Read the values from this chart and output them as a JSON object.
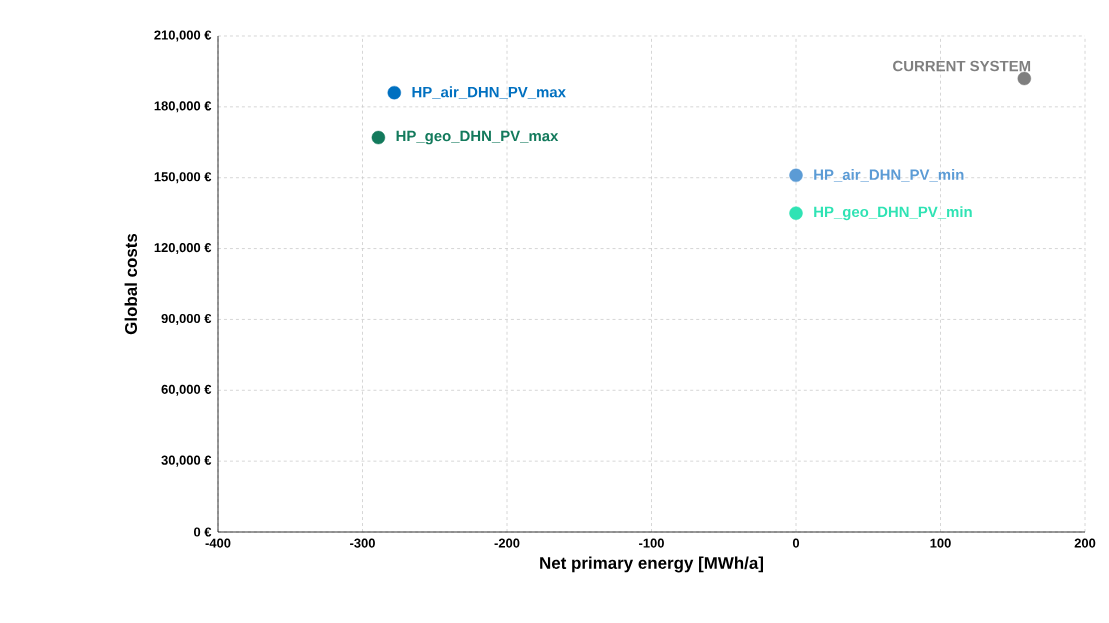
{
  "chart_data": {
    "type": "scatter",
    "xlabel": "Net primary energy [MWh/a]",
    "ylabel": "Global costs",
    "series": [
      {
        "name": "HP_air_DHN_PV_max",
        "color": "#0070c0",
        "x": [
          -278
        ],
        "values": [
          186000
        ]
      },
      {
        "name": "HP_geo_DHN_PV_max",
        "color": "#137a5c",
        "x": [
          -289
        ],
        "values": [
          167000
        ]
      },
      {
        "name": "HP_air_DHN_PV_min",
        "color": "#5b9bd5",
        "x": [
          0
        ],
        "values": [
          151000
        ]
      },
      {
        "name": "HP_geo_DHN_PV_min",
        "color": "#2fe3b4",
        "x": [
          0
        ],
        "values": [
          135000
        ]
      },
      {
        "name": "CURRENT SYSTEM",
        "color": "#7f7f7f",
        "x": [
          158
        ],
        "values": [
          192000
        ]
      }
    ],
    "xlim": [
      -400,
      200
    ],
    "xticks": [
      -400,
      -300,
      -200,
      -100,
      0,
      100,
      200
    ],
    "ylim": [
      0,
      210000
    ],
    "yticks": [
      {
        "value": 0,
        "label": "0 €"
      },
      {
        "value": 30000,
        "label": "30,000 €"
      },
      {
        "value": 60000,
        "label": "60,000 €"
      },
      {
        "value": 90000,
        "label": "90,000 €"
      },
      {
        "value": 120000,
        "label": "120,000 €"
      },
      {
        "value": 150000,
        "label": "150,000 €"
      },
      {
        "value": 180000,
        "label": "180,000 €"
      },
      {
        "value": 210000,
        "label": "210,000 €"
      }
    ],
    "grid": true
  }
}
